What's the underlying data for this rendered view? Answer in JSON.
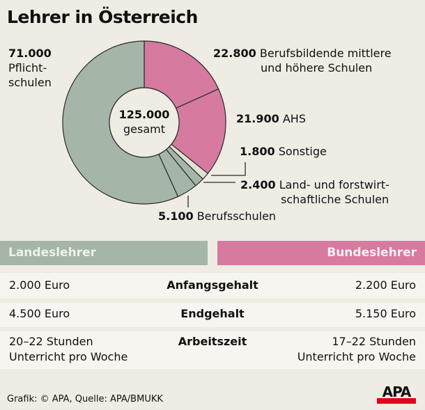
{
  "title": "Lehrer in Österreich",
  "chart_data": {
    "type": "pie",
    "subtype": "donut",
    "title": "Lehrer in Österreich",
    "total": {
      "value": "125.000",
      "label": "gesamt"
    },
    "slices": [
      {
        "label": "Berufsbildende mittlere und höhere Schulen",
        "value": 22800,
        "display": "22.800",
        "color": "#d67aa0"
      },
      {
        "label": "AHS",
        "value": 21900,
        "display": "21.900",
        "color": "#d67aa0"
      },
      {
        "label": "Sonstige",
        "value": 1800,
        "display": "1.800",
        "color": "#e2e0d4"
      },
      {
        "label": "Land- und forstwirtschaftliche Schulen",
        "value": 2400,
        "display": "2.400",
        "color": "#a5b5a8"
      },
      {
        "label": "Berufsschulen",
        "value": 5100,
        "display": "5.100",
        "color": "#a5b5a8"
      },
      {
        "label": "Pflichtschulen",
        "value": 71000,
        "display": "71.000",
        "color": "#a5b5a8"
      }
    ]
  },
  "labels": {
    "pflicht": {
      "value": "71.000",
      "line1": "Pflicht-",
      "line2": "schulen"
    },
    "bmhs": {
      "value": "22.800",
      "line1": "Berufsbildende mittlere",
      "line2": "und höhere Schulen"
    },
    "ahs": {
      "value": "21.900",
      "text": "AHS"
    },
    "sonstige": {
      "value": "1.800",
      "text": "Sonstige"
    },
    "land": {
      "value": "2.400",
      "line1": "Land- und forstwirt-",
      "line2": "schaftliche Schulen"
    },
    "berufs": {
      "value": "5.100",
      "text": "Berufsschulen"
    },
    "center": {
      "value": "125.000",
      "text": "gesamt"
    }
  },
  "table": {
    "left_header": "Landeslehrer",
    "right_header": "Bundeslehrer",
    "colors": {
      "left": "#a5b5a8",
      "right": "#d67aa0"
    },
    "rows": [
      {
        "left": "2.000 Euro",
        "label": "Anfangsgehalt",
        "right": "2.200 Euro"
      },
      {
        "left": "4.500 Euro",
        "label": "Endgehalt",
        "right": "5.150 Euro"
      },
      {
        "left1": "20–22 Stunden",
        "left2": "Unterricht pro Woche",
        "label": "Arbeitszeit",
        "right1": "17–22 Stunden",
        "right2": "Unterricht pro Woche"
      }
    ]
  },
  "footer": {
    "credit": "Grafik: © APA, Quelle: APA/BMUKK",
    "logo": "APA",
    "logo_color": "#e2001a"
  }
}
